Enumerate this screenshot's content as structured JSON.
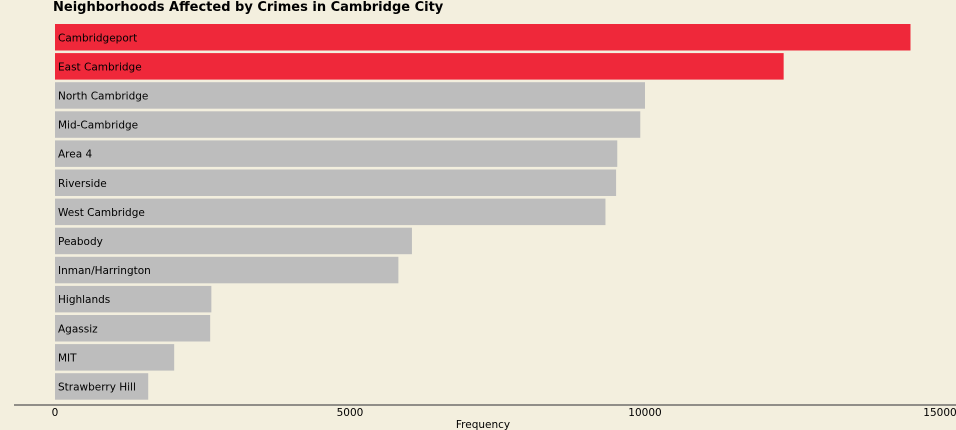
{
  "chart_data": {
    "type": "bar",
    "orientation": "horizontal",
    "title": "Neighborhoods Affected by Crimes in Cambridge City",
    "xlabel": "Frequency",
    "ylabel": "",
    "xlim": [
      0,
      15000
    ],
    "xticks": [
      0,
      5000,
      10000,
      15000
    ],
    "grid": false,
    "colors": {
      "highlight": "#ef283a",
      "default": "#bdbdbd",
      "background": "#f3efde",
      "axis": "#555555"
    },
    "categories": [
      "Cambridgeport",
      "East Cambridge",
      "North Cambridge",
      "Mid-Cambridge",
      "Area 4",
      "Riverside",
      "West Cambridge",
      "Peabody",
      "Inman/Harrington",
      "Highlands",
      "Agassiz",
      "MIT",
      "Strawberry Hill"
    ],
    "values": [
      14500,
      12350,
      10000,
      9920,
      9530,
      9510,
      9330,
      6050,
      5820,
      2650,
      2630,
      2020,
      1580
    ],
    "highlighted": [
      true,
      true,
      false,
      false,
      false,
      false,
      false,
      false,
      false,
      false,
      false,
      false,
      false
    ]
  }
}
